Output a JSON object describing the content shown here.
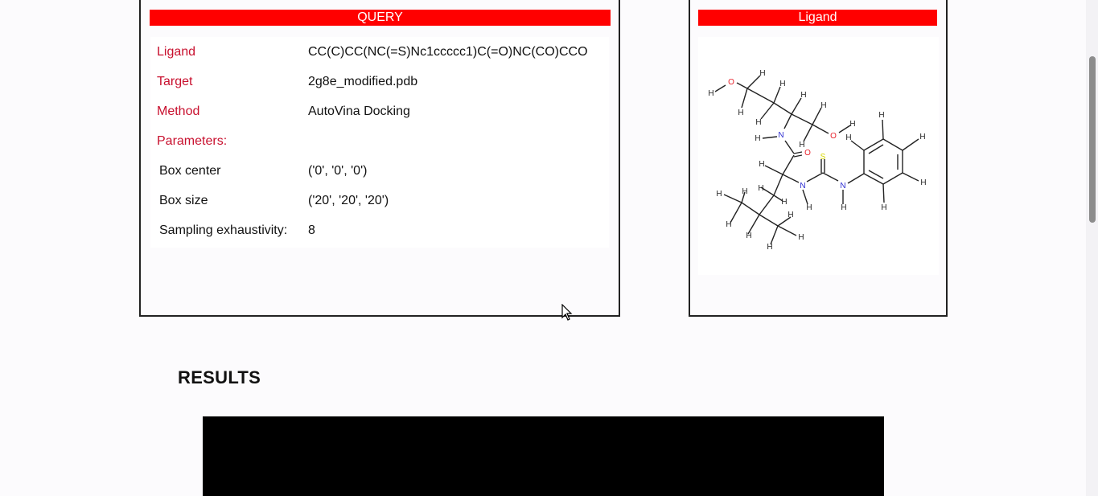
{
  "query": {
    "banner": "QUERY",
    "rows": [
      {
        "label": "Ligand",
        "value": "CC(C)CC(NC(=S)Nc1ccccc1)C(=O)NC(CO)CCO"
      },
      {
        "label": "Target",
        "value": "2g8e_modified.pdb"
      },
      {
        "label": "Method",
        "value": "AutoVina Docking"
      },
      {
        "label": "Parameters:",
        "value": ""
      },
      {
        "label": "Box center",
        "value": "('0', '0', '0')"
      },
      {
        "label": "Box size",
        "value": "('20', '20', '20')"
      },
      {
        "label": "Sampling exhaustivity:",
        "value": "8"
      }
    ]
  },
  "ligand_panel": {
    "banner": "Ligand",
    "atoms": {
      "O1": "O",
      "O2": "O",
      "O3": "O",
      "N1": "N",
      "N2": "N",
      "N3": "N",
      "S": "S",
      "H": "H"
    }
  },
  "results": {
    "title": "RESULTS"
  },
  "colors": {
    "banner": "#ff0000",
    "label_red": "#c8102e",
    "oxygen": "#e8212b",
    "nitrogen": "#2b2bd0",
    "sulfur": "#d6d600"
  }
}
